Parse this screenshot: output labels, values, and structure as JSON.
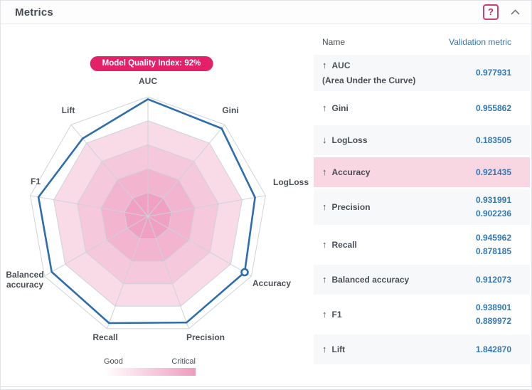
{
  "header": {
    "title": "Metrics",
    "help_label": "?"
  },
  "badge": {
    "text": "Model Quality Index: 92%"
  },
  "chart_data": {
    "type": "radar",
    "axes": [
      "AUC",
      "Gini",
      "LogLoss",
      "Accuracy",
      "Precision",
      "Recall",
      "Balanced accuracy",
      "F1",
      "Lift"
    ],
    "values": [
      0.98,
      0.96,
      0.91,
      0.935,
      0.945,
      0.95,
      0.93,
      0.93,
      0.85
    ],
    "value_scale": "fraction of outer ring radius; 5 concentric rings, outer band = Good, center = Critical",
    "rings": 5,
    "marker_axis": "Accuracy",
    "colors": {
      "line": "#2e6dad",
      "grid": "#ccd3da",
      "ring_bands_outer_to_inner": [
        "#ffffff",
        "#f9dbe8",
        "#f6c8db",
        "#f3b4cf",
        "#efa0c3"
      ]
    }
  },
  "legend": {
    "left": "Good",
    "right": "Critical",
    "gradient_from": "#ffffff",
    "gradient_to": "#ee9cbf"
  },
  "table": {
    "columns": [
      "Name",
      "Validation metric"
    ],
    "rows": [
      {
        "direction": "up",
        "name": "AUC",
        "subtitle": "(Area Under the Curve)",
        "values": [
          "0.977931"
        ],
        "bg": "gray"
      },
      {
        "direction": "up",
        "name": "Gini",
        "values": [
          "0.955862"
        ],
        "bg": "white"
      },
      {
        "direction": "down",
        "name": "LogLoss",
        "values": [
          "0.183505"
        ],
        "bg": "gray"
      },
      {
        "direction": "up",
        "name": "Accuracy",
        "values": [
          "0.921435"
        ],
        "bg": "pink"
      },
      {
        "direction": "up",
        "name": "Precision",
        "values": [
          "0.931991",
          "0.902236"
        ],
        "bg": "gray"
      },
      {
        "direction": "up",
        "name": "Recall",
        "values": [
          "0.945962",
          "0.878185"
        ],
        "bg": "white"
      },
      {
        "direction": "up",
        "name": "Balanced accuracy",
        "values": [
          "0.912073"
        ],
        "bg": "gray"
      },
      {
        "direction": "up",
        "name": "F1",
        "values": [
          "0.938901",
          "0.889972"
        ],
        "bg": "white"
      },
      {
        "direction": "up",
        "name": "Lift",
        "values": [
          "1.842870"
        ],
        "bg": "gray"
      }
    ]
  },
  "colors": {
    "accent_pink": "#e22169",
    "value_blue": "#3477b5",
    "text_dark": "#4a4f55",
    "row_gray": "#f7f8f9",
    "row_pink": "#f8d7e3",
    "help_border": "#c74070"
  }
}
